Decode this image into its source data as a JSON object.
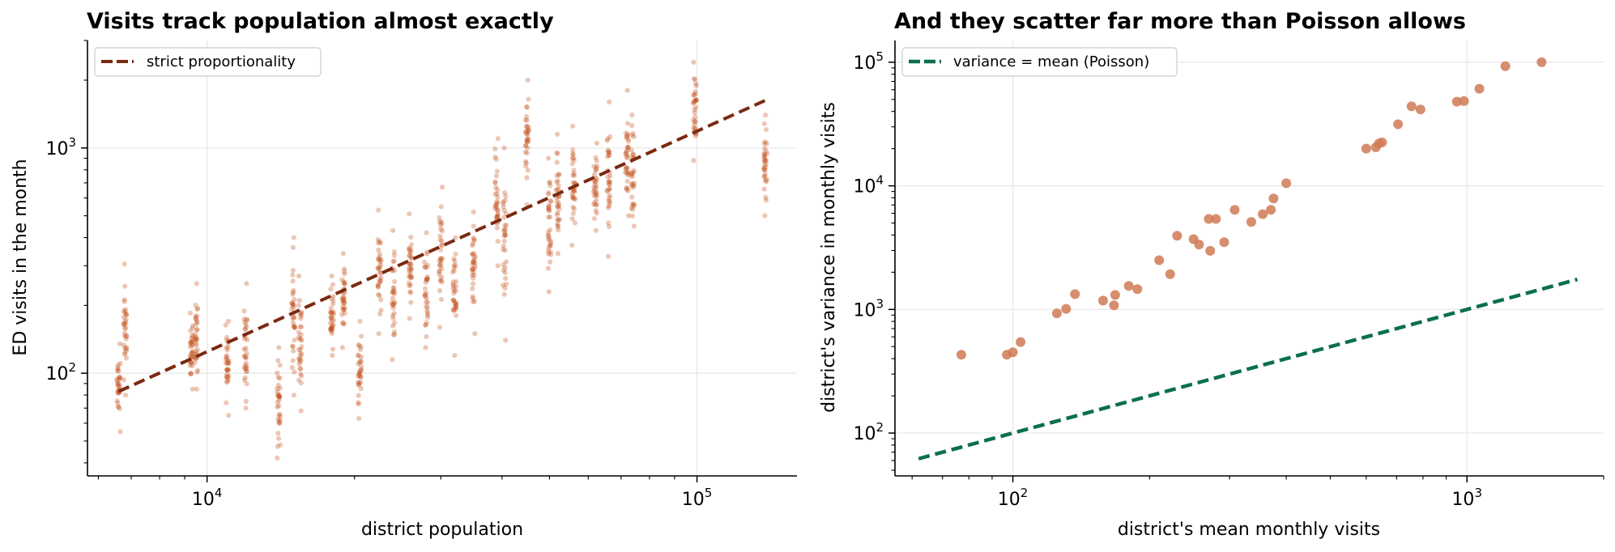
{
  "colors": {
    "left_points": "#c4501c",
    "left_line": "#7a2a10",
    "right_points": "#cf7a55",
    "right_line": "#0b7048",
    "grid": "#e6e6e6"
  },
  "chart_data": [
    {
      "type": "scatter",
      "title": "Visits track population almost exactly",
      "xlabel": "district population",
      "ylabel": "ED visits in the month",
      "xscale": "log",
      "yscale": "log",
      "xlim": [
        5700,
        160000
      ],
      "ylim": [
        35,
        3000
      ],
      "x_ticks": [
        {
          "value": 10000,
          "base": "10",
          "exp": "4"
        },
        {
          "value": 100000,
          "base": "10",
          "exp": "5"
        }
      ],
      "y_ticks": [
        {
          "value": 100,
          "base": "10",
          "exp": "2"
        },
        {
          "value": 1000,
          "base": "10",
          "exp": "3"
        }
      ],
      "grid": true,
      "legend": {
        "position": "top-left",
        "entries": [
          "strict proportionality"
        ]
      },
      "reference_line": {
        "name": "strict proportionality",
        "style": "dashed",
        "x": [
          6600,
          140000
        ],
        "y": [
          83,
          1650
        ]
      },
      "district_groups": [
        {
          "population": 6600,
          "y_range": [
            55,
            135
          ]
        },
        {
          "population": 6800,
          "y_range": [
            80,
            305
          ]
        },
        {
          "population": 9300,
          "y_range": [
            85,
            185
          ]
        },
        {
          "population": 9500,
          "y_range": [
            85,
            250
          ]
        },
        {
          "population": 11000,
          "y_range": [
            65,
            170
          ]
        },
        {
          "population": 12000,
          "y_range": [
            70,
            250
          ]
        },
        {
          "population": 14000,
          "y_range": [
            42,
            130
          ]
        },
        {
          "population": 15000,
          "y_range": [
            80,
            400
          ]
        },
        {
          "population": 15500,
          "y_range": [
            68,
            270
          ]
        },
        {
          "population": 18000,
          "y_range": [
            120,
            270
          ]
        },
        {
          "population": 19000,
          "y_range": [
            130,
            340
          ]
        },
        {
          "population": 20500,
          "y_range": [
            63,
            170
          ]
        },
        {
          "population": 22500,
          "y_range": [
            150,
            530
          ]
        },
        {
          "population": 24000,
          "y_range": [
            115,
            430
          ]
        },
        {
          "population": 26000,
          "y_range": [
            175,
            510
          ]
        },
        {
          "population": 28000,
          "y_range": [
            130,
            420
          ]
        },
        {
          "population": 30000,
          "y_range": [
            160,
            670
          ]
        },
        {
          "population": 32000,
          "y_range": [
            120,
            400
          ]
        },
        {
          "population": 35000,
          "y_range": [
            150,
            520
          ]
        },
        {
          "population": 39000,
          "y_range": [
            300,
            1100
          ]
        },
        {
          "population": 40500,
          "y_range": [
            140,
            1000
          ]
        },
        {
          "population": 45000,
          "y_range": [
            560,
            2000
          ]
        },
        {
          "population": 50000,
          "y_range": [
            230,
            900
          ]
        },
        {
          "population": 52000,
          "y_range": [
            340,
            1150
          ]
        },
        {
          "population": 56000,
          "y_range": [
            370,
            1250
          ]
        },
        {
          "population": 62000,
          "y_range": [
            430,
            1050
          ]
        },
        {
          "population": 66000,
          "y_range": [
            330,
            1600
          ]
        },
        {
          "population": 72000,
          "y_range": [
            500,
            1800
          ]
        },
        {
          "population": 74000,
          "y_range": [
            450,
            1400
          ]
        },
        {
          "population": 99000,
          "y_range": [
            880,
            2400
          ]
        },
        {
          "population": 138000,
          "y_range": [
            500,
            1400
          ]
        }
      ]
    },
    {
      "type": "scatter",
      "title": "And they scatter far more than Poisson allows",
      "xlabel": "district's mean monthly visits",
      "ylabel": "district's variance in monthly visits",
      "xscale": "log",
      "yscale": "log",
      "xlim": [
        55,
        2000
      ],
      "ylim": [
        45,
        150000
      ],
      "x_ticks": [
        {
          "value": 100,
          "base": "10",
          "exp": "2"
        },
        {
          "value": 1000,
          "base": "10",
          "exp": "3"
        }
      ],
      "y_ticks": [
        {
          "value": 100,
          "base": "10",
          "exp": "2"
        },
        {
          "value": 1000,
          "base": "10",
          "exp": "3"
        },
        {
          "value": 10000,
          "base": "10",
          "exp": "4"
        },
        {
          "value": 100000,
          "base": "10",
          "exp": "5"
        }
      ],
      "grid": true,
      "legend": {
        "position": "top-left",
        "entries": [
          "variance = mean (Poisson)"
        ]
      },
      "reference_line": {
        "name": "variance = mean (Poisson)",
        "style": "dashed",
        "x": [
          62,
          1750
        ],
        "y": [
          62,
          1750
        ]
      },
      "points": [
        {
          "x": 77,
          "y": 430
        },
        {
          "x": 97,
          "y": 430
        },
        {
          "x": 100,
          "y": 450
        },
        {
          "x": 104,
          "y": 545
        },
        {
          "x": 125,
          "y": 930
        },
        {
          "x": 131,
          "y": 1010
        },
        {
          "x": 137,
          "y": 1330
        },
        {
          "x": 158,
          "y": 1180
        },
        {
          "x": 167,
          "y": 1080
        },
        {
          "x": 168,
          "y": 1310
        },
        {
          "x": 180,
          "y": 1550
        },
        {
          "x": 188,
          "y": 1460
        },
        {
          "x": 210,
          "y": 2500
        },
        {
          "x": 222,
          "y": 1930
        },
        {
          "x": 230,
          "y": 3950
        },
        {
          "x": 250,
          "y": 3700
        },
        {
          "x": 257,
          "y": 3350
        },
        {
          "x": 270,
          "y": 5400
        },
        {
          "x": 272,
          "y": 2980
        },
        {
          "x": 280,
          "y": 5400
        },
        {
          "x": 292,
          "y": 3500
        },
        {
          "x": 308,
          "y": 6400
        },
        {
          "x": 335,
          "y": 5100
        },
        {
          "x": 355,
          "y": 5900
        },
        {
          "x": 370,
          "y": 6400
        },
        {
          "x": 375,
          "y": 7900
        },
        {
          "x": 400,
          "y": 10500
        },
        {
          "x": 600,
          "y": 20000
        },
        {
          "x": 630,
          "y": 20500
        },
        {
          "x": 640,
          "y": 22000
        },
        {
          "x": 650,
          "y": 22500
        },
        {
          "x": 705,
          "y": 31500
        },
        {
          "x": 755,
          "y": 44000
        },
        {
          "x": 790,
          "y": 41500
        },
        {
          "x": 950,
          "y": 48000
        },
        {
          "x": 985,
          "y": 48500
        },
        {
          "x": 1065,
          "y": 61000
        },
        {
          "x": 1215,
          "y": 93000
        },
        {
          "x": 1460,
          "y": 100000
        }
      ]
    }
  ]
}
